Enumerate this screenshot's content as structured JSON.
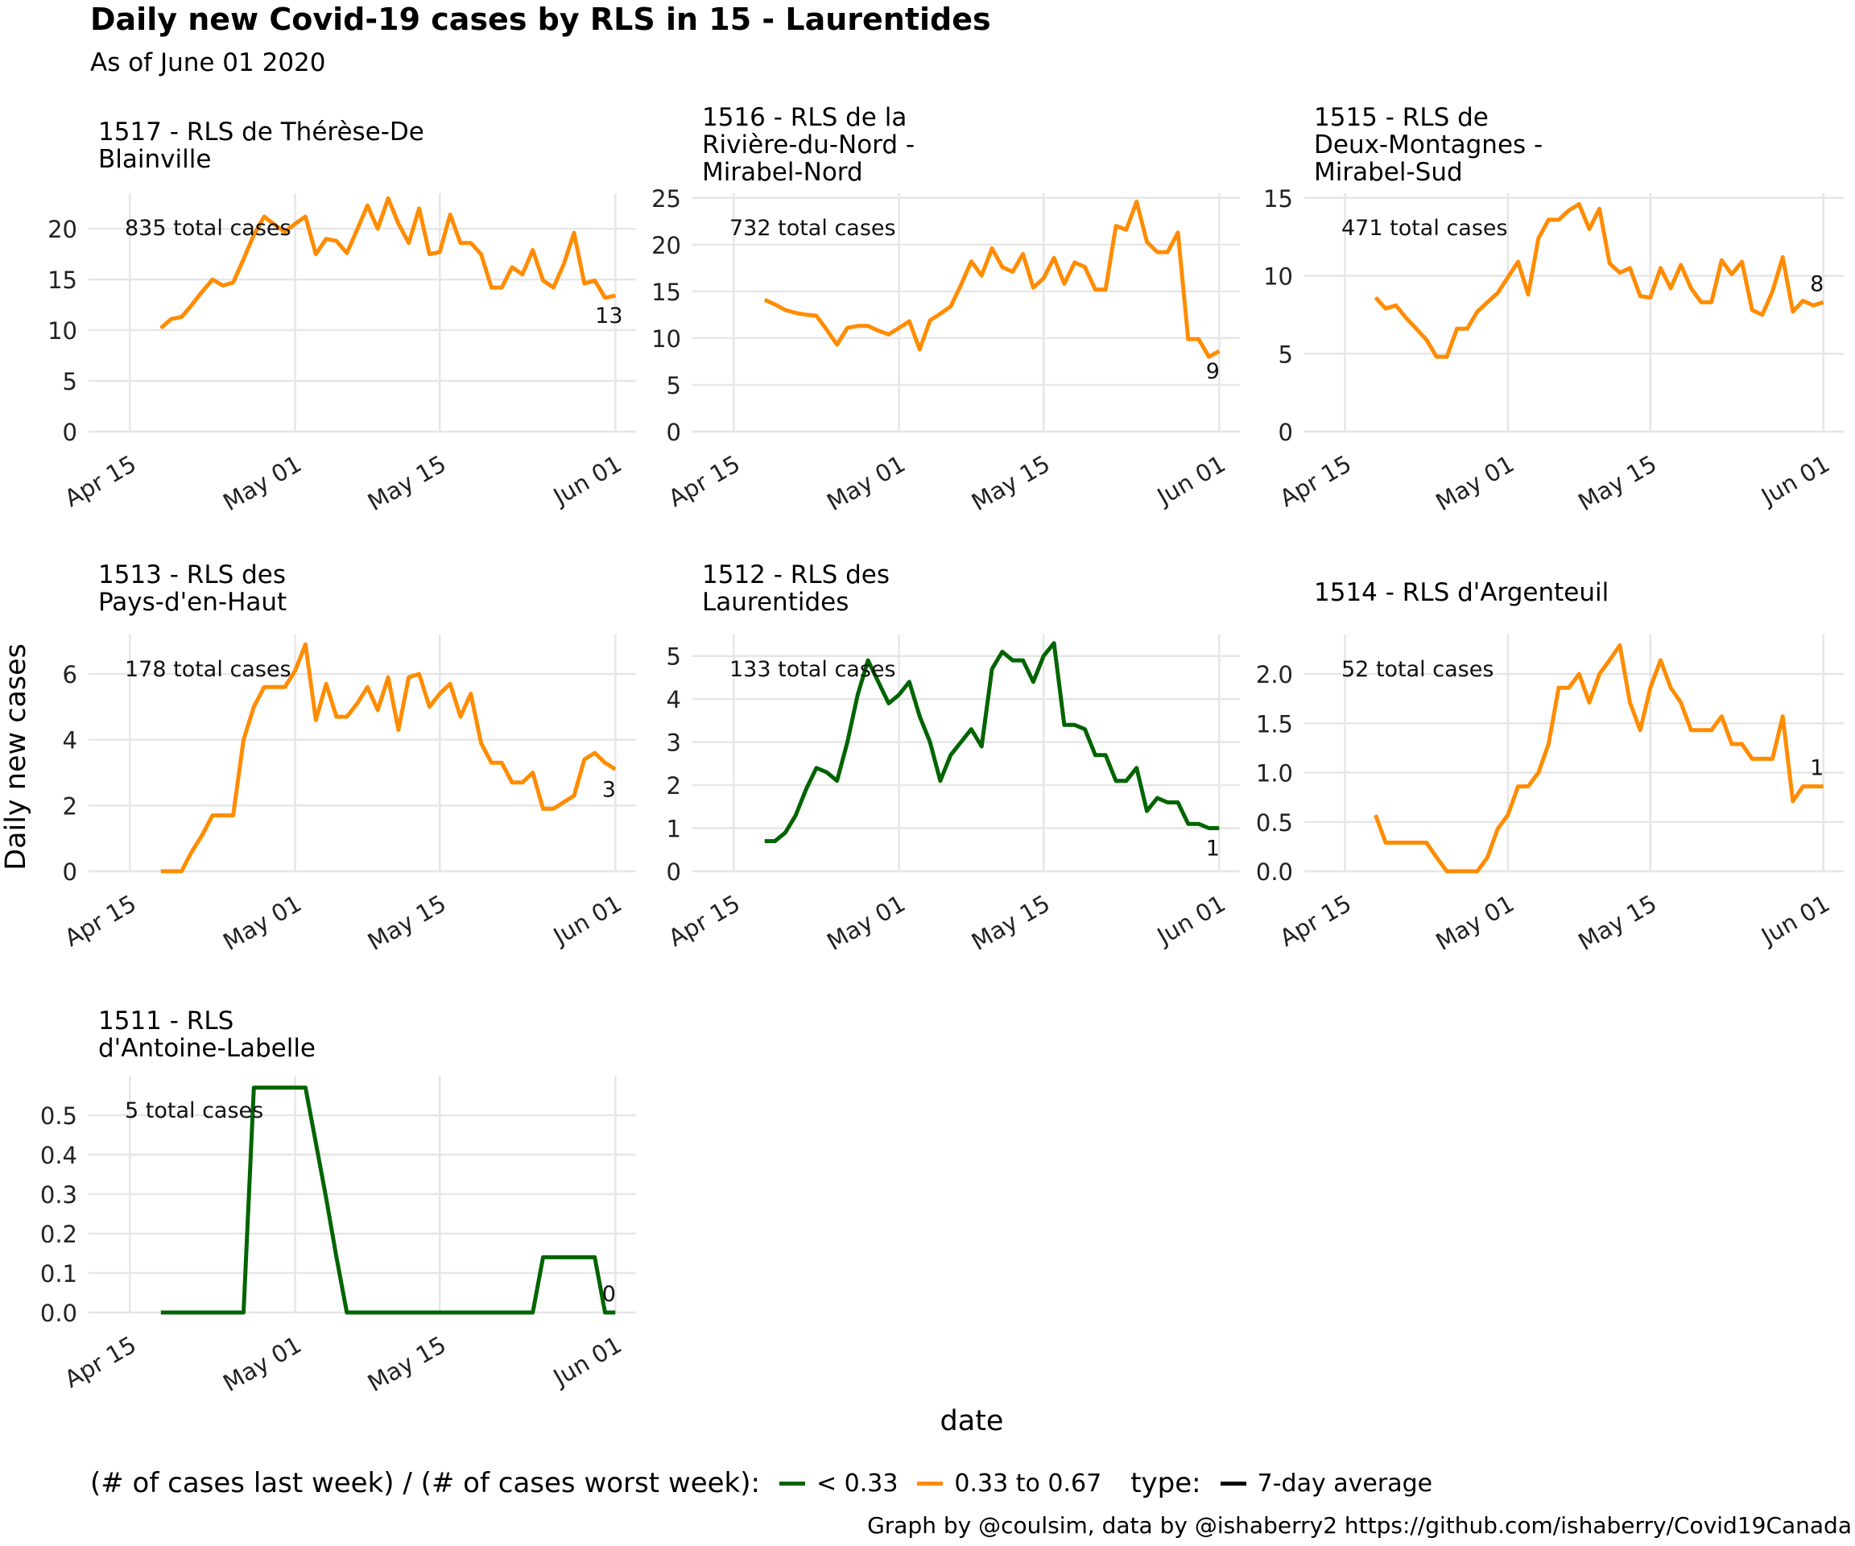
{
  "title": "Daily new Covid-19 cases by RLS in 15 - Laurentides",
  "subtitle": "As of June 01 2020",
  "xlabel": "date",
  "ylabel": "Daily new cases",
  "legend": {
    "ratio_label": "(# of cases last week) / (# of cases worst week):",
    "ratio_items": [
      {
        "label": "< 0.33",
        "color": "#006400"
      },
      {
        "label": "0.33 to 0.67",
        "color": "#ff8c00"
      }
    ],
    "type_label": "type:",
    "type_items": [
      {
        "label": "7-day average",
        "color": "#000000"
      }
    ]
  },
  "credit": "Graph by @coulsim, data by @ishaberry2 https://github.com/ishaberry/Covid19Canada",
  "colors": {
    "green": "#006400",
    "orange": "#ff8c00",
    "grid": "#e6e6e6"
  },
  "chart_data": [
    {
      "type": "line",
      "facet_title": [
        "1517 - RLS de Thérèse-De",
        "Blainville"
      ],
      "total_label": "835 total cases",
      "last_label": "13",
      "color": "#ff8c00",
      "ylim": [
        0,
        23.5
      ],
      "yticks": [
        0,
        5,
        10,
        15,
        20
      ],
      "ytick_labels": [
        "0",
        "5",
        "10",
        "15",
        "20"
      ],
      "xticks": [
        "2020-04-15",
        "2020-05-01",
        "2020-05-15",
        "2020-06-01"
      ],
      "xtick_labels": [
        "Apr 15",
        "May 01",
        "May 15",
        "Jun 01"
      ],
      "start_date": "2020-04-18",
      "values": [
        10.2,
        11.1,
        11.3,
        12.5,
        13.8,
        15.0,
        14.4,
        14.7,
        17.0,
        19.4,
        21.2,
        20.4,
        19.7,
        20.5,
        21.2,
        17.5,
        19.0,
        18.8,
        17.6,
        19.9,
        22.3,
        20.0,
        23.0,
        20.5,
        18.6,
        22.0,
        17.5,
        17.7,
        21.4,
        18.6,
        18.6,
        17.5,
        14.2,
        14.2,
        16.2,
        15.5,
        17.9,
        14.9,
        14.2,
        16.5,
        19.6,
        14.6,
        14.9,
        13.2,
        13.4
      ]
    },
    {
      "type": "line",
      "facet_title": [
        "1516 - RLS de la",
        "Rivière-du-Nord -",
        "Mirabel-Nord"
      ],
      "total_label": "732 total cases",
      "last_label": "9",
      "color": "#ff8c00",
      "ylim": [
        0,
        25.5
      ],
      "yticks": [
        0,
        5,
        10,
        15,
        20,
        25
      ],
      "ytick_labels": [
        "0",
        "5",
        "10",
        "15",
        "20",
        "25"
      ],
      "xticks": [
        "2020-04-15",
        "2020-05-01",
        "2020-05-15",
        "2020-06-01"
      ],
      "xtick_labels": [
        "Apr 15",
        "May 01",
        "May 15",
        "Jun 01"
      ],
      "start_date": "2020-04-18",
      "values": [
        14.1,
        13.6,
        13.0,
        12.7,
        12.5,
        12.4,
        10.9,
        9.3,
        11.1,
        11.3,
        11.3,
        10.8,
        10.4,
        11.1,
        11.8,
        8.8,
        11.9,
        12.6,
        13.4,
        15.7,
        18.2,
        16.7,
        19.6,
        17.6,
        17.1,
        19.0,
        15.4,
        16.4,
        18.6,
        15.8,
        18.1,
        17.6,
        15.2,
        15.2,
        22.0,
        21.6,
        24.6,
        20.3,
        19.2,
        19.2,
        21.3,
        9.9,
        9.9,
        8.0,
        8.6
      ]
    },
    {
      "type": "line",
      "facet_title": [
        "1515 - RLS de",
        "Deux-Montagnes -",
        "Mirabel-Sud"
      ],
      "total_label": "471 total cases",
      "last_label": "8",
      "color": "#ff8c00",
      "ylim": [
        0,
        15.3
      ],
      "yticks": [
        0,
        5,
        10,
        15
      ],
      "ytick_labels": [
        "0",
        "5",
        "10",
        "15"
      ],
      "xticks": [
        "2020-04-15",
        "2020-05-01",
        "2020-05-15",
        "2020-06-01"
      ],
      "xtick_labels": [
        "Apr 15",
        "May 01",
        "May 15",
        "Jun 01"
      ],
      "start_date": "2020-04-18",
      "values": [
        8.6,
        7.9,
        8.1,
        7.3,
        6.6,
        5.9,
        4.8,
        4.8,
        6.6,
        6.6,
        7.7,
        8.3,
        8.9,
        9.9,
        10.9,
        8.8,
        12.4,
        13.6,
        13.6,
        14.2,
        14.6,
        13.0,
        14.3,
        10.8,
        10.2,
        10.5,
        8.7,
        8.6,
        10.5,
        9.2,
        10.7,
        9.2,
        8.3,
        8.3,
        11.0,
        10.1,
        10.9,
        7.8,
        7.5,
        9.0,
        11.2,
        7.7,
        8.4,
        8.1,
        8.3
      ]
    },
    {
      "type": "line",
      "facet_title": [
        "1513 - RLS des",
        "Pays-d'en-Haut"
      ],
      "total_label": "178 total cases",
      "last_label": "3",
      "color": "#ff8c00",
      "ylim": [
        0,
        7.2
      ],
      "yticks": [
        0,
        2,
        4,
        6
      ],
      "ytick_labels": [
        "0",
        "2",
        "4",
        "6"
      ],
      "xticks": [
        "2020-04-15",
        "2020-05-01",
        "2020-05-15",
        "2020-06-01"
      ],
      "xtick_labels": [
        "Apr 15",
        "May 01",
        "May 15",
        "Jun 01"
      ],
      "start_date": "2020-04-18",
      "values": [
        0.0,
        0.0,
        0.0,
        0.6,
        1.1,
        1.7,
        1.7,
        1.7,
        4.0,
        5.0,
        5.6,
        5.6,
        5.6,
        6.1,
        6.9,
        4.6,
        5.7,
        4.7,
        4.7,
        5.1,
        5.6,
        4.9,
        5.9,
        4.3,
        5.9,
        6.0,
        5.0,
        5.4,
        5.7,
        4.7,
        5.4,
        3.9,
        3.3,
        3.3,
        2.7,
        2.7,
        3.0,
        1.9,
        1.9,
        2.1,
        2.3,
        3.4,
        3.6,
        3.3,
        3.1
      ]
    },
    {
      "type": "line",
      "facet_title": [
        "1512 - RLS des",
        "Laurentides"
      ],
      "total_label": "133 total cases",
      "last_label": "1",
      "color": "#006400",
      "ylim": [
        0,
        5.5
      ],
      "yticks": [
        0,
        1,
        2,
        3,
        4,
        5
      ],
      "ytick_labels": [
        "0",
        "1",
        "2",
        "3",
        "4",
        "5"
      ],
      "xticks": [
        "2020-04-15",
        "2020-05-01",
        "2020-05-15",
        "2020-06-01"
      ],
      "xtick_labels": [
        "Apr 15",
        "May 01",
        "May 15",
        "Jun 01"
      ],
      "start_date": "2020-04-18",
      "values": [
        0.7,
        0.7,
        0.9,
        1.3,
        1.9,
        2.4,
        2.3,
        2.1,
        3.0,
        4.1,
        4.9,
        4.4,
        3.9,
        4.1,
        4.4,
        3.6,
        3.0,
        2.1,
        2.7,
        3.0,
        3.3,
        2.9,
        4.7,
        5.1,
        4.9,
        4.9,
        4.4,
        5.0,
        5.3,
        3.4,
        3.4,
        3.3,
        2.7,
        2.7,
        2.1,
        2.1,
        2.4,
        1.4,
        1.7,
        1.6,
        1.6,
        1.1,
        1.1,
        1.0,
        1.0
      ]
    },
    {
      "type": "line",
      "facet_title": [
        "1514 - RLS d'Argenteuil"
      ],
      "total_label": "52 total cases",
      "last_label": "1",
      "color": "#ff8c00",
      "ylim": [
        0,
        2.4
      ],
      "yticks": [
        0,
        0.5,
        1.0,
        1.5,
        2.0
      ],
      "ytick_labels": [
        "0.0",
        "0.5",
        "1.0",
        "1.5",
        "2.0"
      ],
      "xticks": [
        "2020-04-15",
        "2020-05-01",
        "2020-05-15",
        "2020-06-01"
      ],
      "xtick_labels": [
        "Apr 15",
        "May 01",
        "May 15",
        "Jun 01"
      ],
      "start_date": "2020-04-18",
      "values": [
        0.57,
        0.29,
        0.29,
        0.29,
        0.29,
        0.29,
        0.14,
        0.0,
        0.0,
        0.0,
        0.0,
        0.14,
        0.43,
        0.57,
        0.86,
        0.86,
        1.0,
        1.29,
        1.86,
        1.86,
        2.0,
        1.71,
        2.0,
        2.14,
        2.29,
        1.71,
        1.43,
        1.86,
        2.14,
        1.86,
        1.71,
        1.43,
        1.43,
        1.43,
        1.57,
        1.29,
        1.29,
        1.14,
        1.14,
        1.14,
        1.57,
        0.71,
        0.86,
        0.86,
        0.86
      ]
    },
    {
      "type": "line",
      "facet_title": [
        "1511 - RLS",
        "d'Antoine-Labelle"
      ],
      "total_label": "5 total cases",
      "last_label": "0",
      "color": "#006400",
      "ylim": [
        0,
        0.6
      ],
      "yticks": [
        0,
        0.1,
        0.2,
        0.3,
        0.4,
        0.5
      ],
      "ytick_labels": [
        "0.0",
        "0.1",
        "0.2",
        "0.3",
        "0.4",
        "0.5"
      ],
      "xticks": [
        "2020-04-15",
        "2020-05-01",
        "2020-05-15",
        "2020-06-01"
      ],
      "xtick_labels": [
        "Apr 15",
        "May 01",
        "May 15",
        "Jun 01"
      ],
      "start_date": "2020-04-18",
      "values": [
        0.0,
        0.0,
        0.0,
        0.0,
        0.0,
        0.0,
        0.0,
        0.0,
        0.0,
        0.57,
        0.57,
        0.57,
        0.57,
        0.57,
        0.57,
        0.43,
        0.29,
        0.14,
        0.0,
        0.0,
        0.0,
        0.0,
        0.0,
        0.0,
        0.0,
        0.0,
        0.0,
        0.0,
        0.0,
        0.0,
        0.0,
        0.0,
        0.0,
        0.0,
        0.0,
        0.0,
        0.0,
        0.14,
        0.14,
        0.14,
        0.14,
        0.14,
        0.14,
        0.0,
        0.0
      ]
    }
  ]
}
